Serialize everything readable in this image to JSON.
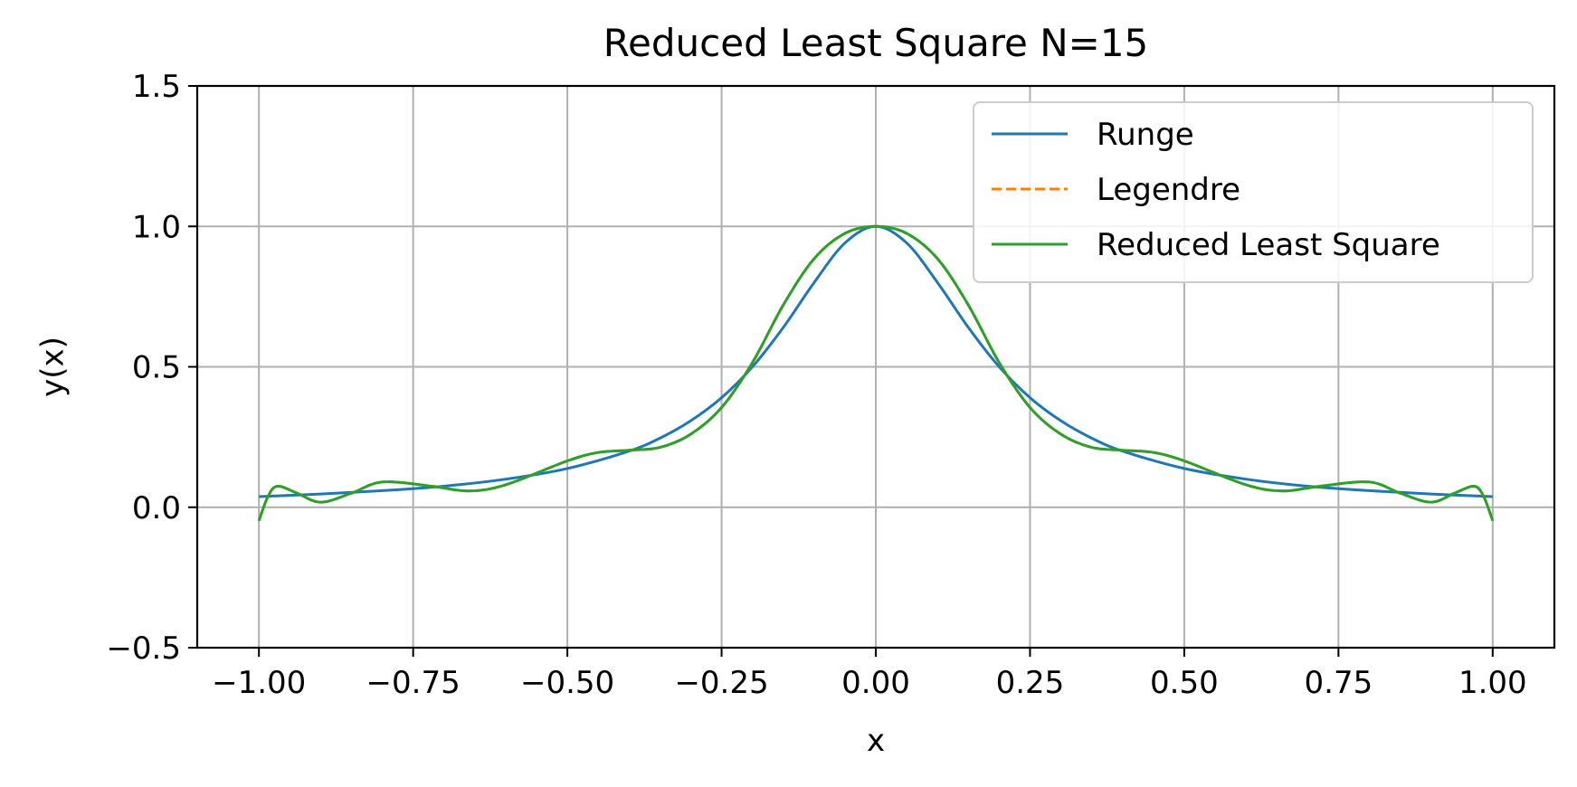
{
  "chart_data": {
    "type": "line",
    "title": "Reduced Least Square N=15",
    "xlabel": "x",
    "ylabel": "y(x)",
    "xlim": [
      -1.1,
      1.1
    ],
    "ylim": [
      -0.5,
      1.5
    ],
    "grid": true,
    "legend_position": "top-right",
    "x_ticks": [
      {
        "value": -1.0,
        "label": "−1.00"
      },
      {
        "value": -0.75,
        "label": "−0.75"
      },
      {
        "value": -0.5,
        "label": "−0.50"
      },
      {
        "value": -0.25,
        "label": "−0.25"
      },
      {
        "value": 0.0,
        "label": "0.00"
      },
      {
        "value": 0.25,
        "label": "0.25"
      },
      {
        "value": 0.5,
        "label": "0.50"
      },
      {
        "value": 0.75,
        "label": "0.75"
      },
      {
        "value": 1.0,
        "label": "1.00"
      }
    ],
    "y_ticks": [
      {
        "value": -0.5,
        "label": "−0.5"
      },
      {
        "value": 0.0,
        "label": "0.0"
      },
      {
        "value": 0.5,
        "label": "0.5"
      },
      {
        "value": 1.0,
        "label": "1.0"
      },
      {
        "value": 1.5,
        "label": "1.5"
      }
    ],
    "series": [
      {
        "name": "Runge",
        "color": "#1f77b4",
        "style": "solid",
        "x": [
          -1.0,
          -0.9,
          -0.8,
          -0.7,
          -0.6,
          -0.5,
          -0.4,
          -0.35,
          -0.3,
          -0.25,
          -0.2,
          -0.15,
          -0.1,
          -0.05,
          0.0,
          0.05,
          0.1,
          0.15,
          0.2,
          0.25,
          0.3,
          0.35,
          0.4,
          0.5,
          0.6,
          0.7,
          0.8,
          0.9,
          1.0
        ],
        "y": [
          0.038,
          0.047,
          0.059,
          0.075,
          0.1,
          0.138,
          0.2,
          0.246,
          0.308,
          0.39,
          0.5,
          0.64,
          0.8,
          0.941,
          1.0,
          0.941,
          0.8,
          0.64,
          0.5,
          0.39,
          0.308,
          0.246,
          0.2,
          0.138,
          0.1,
          0.075,
          0.059,
          0.047,
          0.038
        ]
      },
      {
        "name": "Legendre",
        "color": "#ff7f0e",
        "style": "dashed",
        "x": [
          -1.0,
          -0.985,
          -0.97,
          -0.94,
          -0.9,
          -0.85,
          -0.8,
          -0.72,
          -0.66,
          -0.6,
          -0.5,
          -0.45,
          -0.4,
          -0.35,
          -0.3,
          -0.25,
          -0.2,
          -0.15,
          -0.1,
          -0.05,
          0.0,
          0.05,
          0.1,
          0.15,
          0.2,
          0.25,
          0.3,
          0.35,
          0.4,
          0.45,
          0.5,
          0.6,
          0.66,
          0.72,
          0.8,
          0.85,
          0.9,
          0.94,
          0.97,
          0.985,
          1.0
        ],
        "y": [
          -0.048,
          0.04,
          0.075,
          0.052,
          0.018,
          0.05,
          0.09,
          0.075,
          0.058,
          0.08,
          0.165,
          0.195,
          0.203,
          0.213,
          0.26,
          0.355,
          0.515,
          0.72,
          0.885,
          0.975,
          1.0,
          0.975,
          0.885,
          0.72,
          0.515,
          0.355,
          0.26,
          0.213,
          0.203,
          0.195,
          0.165,
          0.08,
          0.058,
          0.075,
          0.09,
          0.05,
          0.018,
          0.052,
          0.075,
          0.04,
          -0.048
        ]
      },
      {
        "name": "Reduced Least Square",
        "color": "#2ca02c",
        "style": "solid",
        "x": [
          -1.0,
          -0.985,
          -0.97,
          -0.94,
          -0.9,
          -0.85,
          -0.8,
          -0.72,
          -0.66,
          -0.6,
          -0.5,
          -0.45,
          -0.4,
          -0.35,
          -0.3,
          -0.25,
          -0.2,
          -0.15,
          -0.1,
          -0.05,
          0.0,
          0.05,
          0.1,
          0.15,
          0.2,
          0.25,
          0.3,
          0.35,
          0.4,
          0.45,
          0.5,
          0.6,
          0.66,
          0.72,
          0.8,
          0.85,
          0.9,
          0.94,
          0.97,
          0.985,
          1.0
        ],
        "y": [
          -0.048,
          0.04,
          0.075,
          0.052,
          0.018,
          0.05,
          0.09,
          0.075,
          0.058,
          0.08,
          0.165,
          0.195,
          0.203,
          0.213,
          0.26,
          0.355,
          0.515,
          0.72,
          0.885,
          0.975,
          1.0,
          0.975,
          0.885,
          0.72,
          0.515,
          0.355,
          0.26,
          0.213,
          0.203,
          0.195,
          0.165,
          0.08,
          0.058,
          0.075,
          0.09,
          0.05,
          0.018,
          0.052,
          0.075,
          0.04,
          -0.048
        ]
      }
    ]
  }
}
